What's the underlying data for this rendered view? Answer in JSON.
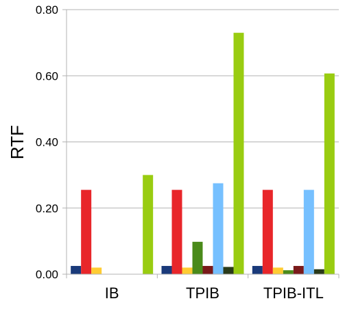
{
  "chart_data": {
    "type": "bar",
    "title": "",
    "xlabel": "",
    "ylabel": "RTF",
    "ylim": [
      0,
      0.8
    ],
    "yticks": [
      "0.00",
      "0.20",
      "0.40",
      "0.60",
      "0.80"
    ],
    "grid": true,
    "legend": "none",
    "categories": [
      "IB",
      "TPIB",
      "TPIB-ITL"
    ],
    "series": [
      {
        "color": "#1a3a7a",
        "values": [
          0.025,
          0.025,
          0.025
        ]
      },
      {
        "color": "#e8262a",
        "values": [
          0.255,
          0.255,
          0.255
        ]
      },
      {
        "color": "#ffcc33",
        "values": [
          0.02,
          0.02,
          0.02
        ]
      },
      {
        "color": "#4a8a1a",
        "values": [
          0,
          0.098,
          0.012
        ]
      },
      {
        "color": "#7a1a1a",
        "values": [
          0,
          0.025,
          0.025
        ]
      },
      {
        "color": "#76c0ff",
        "values": [
          0,
          0.275,
          0.255
        ]
      },
      {
        "color": "#2a3a1a",
        "values": [
          0,
          0.022,
          0.015
        ]
      },
      {
        "color": "#99cc11",
        "values": [
          0.3,
          0.73,
          0.607
        ]
      }
    ]
  }
}
